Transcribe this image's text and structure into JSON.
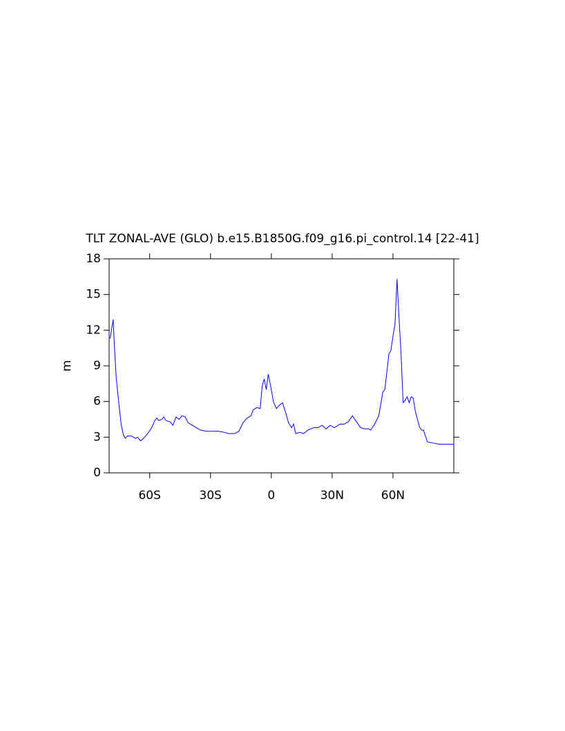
{
  "chart_data": {
    "type": "line",
    "title": "TLT ZONAL-AVE (GLO) b.e15.B1850G.f09_g16.pi_control.14 [22-41]",
    "y_label": "m",
    "xlim": [
      -80,
      90
    ],
    "xticks": [
      {
        "value": -60,
        "label": "60S"
      },
      {
        "value": -30,
        "label": "30S"
      },
      0,
      {
        "value": 30,
        "label": "30N"
      },
      {
        "value": 60,
        "label": "60N"
      }
    ],
    "ylim": [
      0,
      18
    ],
    "yticks": [
      0,
      3,
      6,
      9,
      12,
      15,
      18
    ],
    "series": [
      {
        "color": "#0000ff",
        "x": [
          -79.5,
          -78,
          -77.5,
          -76.5,
          -75,
          -74,
          -73,
          -72,
          -71,
          -69,
          -67,
          -66,
          -64.5,
          -63,
          -61,
          -59,
          -57.5,
          -56.5,
          -55.5,
          -54,
          -53,
          -52,
          -50,
          -48.5,
          -47,
          -45.5,
          -44,
          -42.5,
          -41,
          -39,
          -37,
          -35,
          -32,
          -29,
          -26,
          -23,
          -21,
          -18,
          -16,
          -14,
          -12,
          -10,
          -9,
          -7,
          -5.5,
          -4.5,
          -3.5,
          -2.5,
          -1.5,
          0,
          1,
          2.5,
          4,
          5.5,
          7,
          8.5,
          10,
          11,
          12,
          14,
          16,
          18,
          21,
          23,
          25,
          27,
          29,
          31,
          34,
          36,
          38,
          40,
          42,
          44,
          46,
          48,
          49,
          51,
          53,
          55,
          56,
          57,
          58,
          59,
          60,
          61,
          62,
          63,
          64,
          65,
          66,
          67,
          68,
          69,
          70,
          71,
          73,
          74,
          75,
          77,
          80,
          83,
          87,
          90
        ],
        "values": [
          11.3,
          12.9,
          11,
          8,
          5.5,
          4,
          3.2,
          2.9,
          3.1,
          3.1,
          2.9,
          3.0,
          2.7,
          2.9,
          3.3,
          3.8,
          4.4,
          4.6,
          4.4,
          4.5,
          4.7,
          4.4,
          4.3,
          4.0,
          4.7,
          4.5,
          4.8,
          4.7,
          4.2,
          4.0,
          3.8,
          3.6,
          3.5,
          3.5,
          3.5,
          3.4,
          3.3,
          3.3,
          3.5,
          4.2,
          4.6,
          4.8,
          5.3,
          5.5,
          5.4,
          7.3,
          7.9,
          7.0,
          8.3,
          7.0,
          6.0,
          5.4,
          5.7,
          5.9,
          5.1,
          4.2,
          3.8,
          4.1,
          3.3,
          3.4,
          3.3,
          3.6,
          3.8,
          3.8,
          4.0,
          3.7,
          4.0,
          3.8,
          4.1,
          4.1,
          4.3,
          4.8,
          4.3,
          3.8,
          3.7,
          3.7,
          3.6,
          4.1,
          4.8,
          6.8,
          7.0,
          8.5,
          10.0,
          10.3,
          11.5,
          12.5,
          16.3,
          13,
          10,
          5.9,
          6.1,
          6.4,
          5.9,
          6.4,
          6.3,
          5.2,
          3.9,
          3.6,
          3.6,
          2.6,
          2.5,
          2.4,
          2.4,
          2.4
        ]
      }
    ]
  }
}
